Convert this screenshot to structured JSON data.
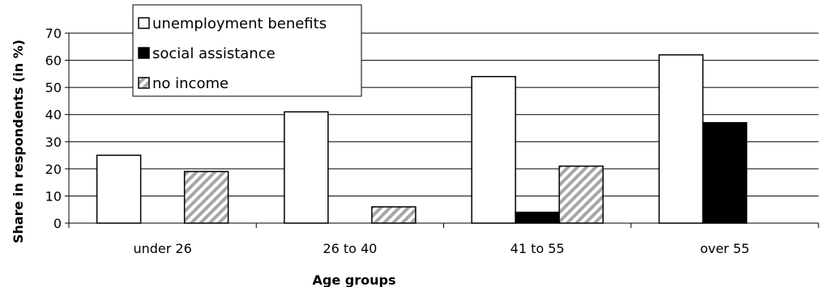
{
  "chart_data": {
    "type": "bar",
    "title": "",
    "xlabel": "Age groups",
    "ylabel": "Share in respondents (in %)",
    "ylim": [
      0,
      70
    ],
    "yticks": [
      0,
      10,
      20,
      30,
      40,
      50,
      60,
      70
    ],
    "grid": true,
    "legend_position": "top-left",
    "categories": [
      "under 26",
      "26 to 40",
      "41 to 55",
      "over 55"
    ],
    "series": [
      {
        "name": "unemployment benefits",
        "values": [
          25,
          41,
          54,
          62
        ],
        "color": "#ffffff"
      },
      {
        "name": "social assistance",
        "values": [
          0,
          0,
          4,
          37
        ],
        "color": "#000000"
      },
      {
        "name": "no income",
        "values": [
          19,
          6,
          21,
          0
        ],
        "color": "#a6a6a6",
        "pattern": "diagonal-hatch"
      }
    ]
  }
}
